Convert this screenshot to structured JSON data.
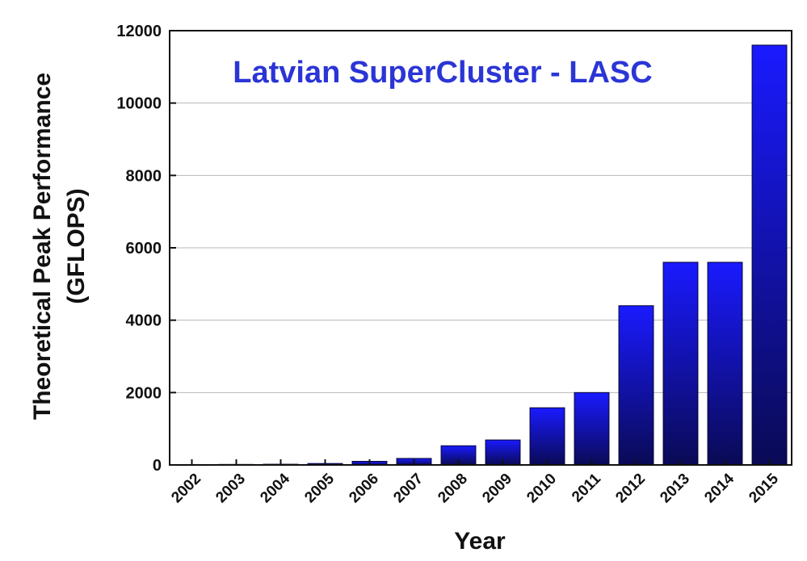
{
  "chart_data": {
    "type": "bar",
    "title": "Latvian SuperCluster - LASC",
    "xlabel": "Year",
    "ylabel_line1": "Theoretical Peak Performance",
    "ylabel_line2": "(GFLOPS)",
    "categories": [
      "2002",
      "2003",
      "2004",
      "2005",
      "2006",
      "2007",
      "2008",
      "2009",
      "2010",
      "2011",
      "2012",
      "2013",
      "2014",
      "2015"
    ],
    "values": [
      10,
      15,
      20,
      40,
      100,
      180,
      530,
      690,
      1580,
      2000,
      4400,
      5600,
      5600,
      11600
    ],
    "ylim": [
      0,
      12000
    ],
    "yticks": [
      "0",
      "2000",
      "4000",
      "6000",
      "8000",
      "10000",
      "12000"
    ],
    "grid": true,
    "colors": {
      "title": "#2b35d6",
      "bar_top": "#1a1aff",
      "bar_bottom": "#0a0a55",
      "grid": "#b8b8b8"
    }
  }
}
